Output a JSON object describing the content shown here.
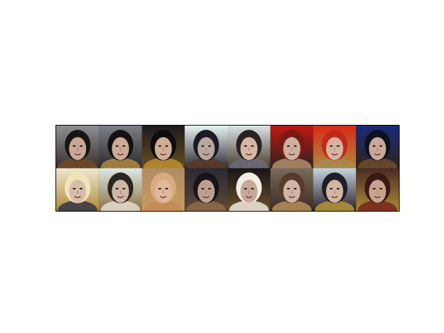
{
  "figure": {
    "grid": {
      "rows": 2,
      "columns": 8,
      "tiles": [
        {
          "bg_top": "#8d8f95",
          "bg_bottom": "#3a2f2a",
          "hair": "#1a1512",
          "skin": "#c8a894",
          "accent": "#6b4a2a"
        },
        {
          "bg_top": "#7b7f86",
          "bg_bottom": "#2c2a2a",
          "hair": "#141014",
          "skin": "#c9ab98",
          "accent": "#a88540"
        },
        {
          "bg_top": "#1c1a1c",
          "bg_bottom": "#6a4d22",
          "hair": "#0e0c0e",
          "skin": "#cfae98",
          "accent": "#b88a30"
        },
        {
          "bg_top": "#e8f4f6",
          "bg_bottom": "#2a2a30",
          "hair": "#1a1c22",
          "skin": "#b8a6a0",
          "accent": "#5a3a2a"
        },
        {
          "bg_top": "#d8e4e6",
          "bg_bottom": "#4a3a2a",
          "hair": "#2a2222",
          "skin": "#d4b8a4",
          "accent": "#6a6a78"
        },
        {
          "bg_top": "#c01810",
          "bg_bottom": "#2a2220",
          "hair": "#7a1a14",
          "skin": "#cfb0a0",
          "accent": "#aa8a6a"
        },
        {
          "bg_top": "#d82a18",
          "bg_bottom": "#b08a40",
          "hair": "#c02a1a",
          "skin": "#d4b4a0",
          "accent": "#a88a50"
        },
        {
          "bg_top": "#1a2a7a",
          "bg_bottom": "#302018",
          "hair": "#0c1020",
          "skin": "#c8a896",
          "accent": "#6a4a2a"
        },
        {
          "bg_top": "#eee8d0",
          "bg_bottom": "#b08a3a",
          "hair": "#f0e4b8",
          "skin": "#d8bcaa",
          "accent": "#3a3a48"
        },
        {
          "bg_top": "#dfe8e8",
          "bg_bottom": "#8a7040",
          "hair": "#2a2620",
          "skin": "#d0b6a4",
          "accent": "#e0d8c8"
        },
        {
          "bg_top": "#b08c64",
          "bg_bottom": "#c89a60",
          "hair": "#d8aa80",
          "skin": "#e0b89a",
          "accent": "#c48a58"
        },
        {
          "bg_top": "#2a2834",
          "bg_bottom": "#5a4a38",
          "hair": "#16141a",
          "skin": "#bfa090",
          "accent": "#8a6a48"
        },
        {
          "bg_top": "#181414",
          "bg_bottom": "#6a5030",
          "hair": "#f2eee6",
          "skin": "#c8a898",
          "accent": "#e8e0d0"
        },
        {
          "bg_top": "#7a6a5c",
          "bg_bottom": "#3a2a22",
          "hair": "#5a3a2a",
          "skin": "#d0b4a4",
          "accent": "#b08a5a"
        },
        {
          "bg_top": "#c4d4e0",
          "bg_bottom": "#2a2028",
          "hair": "#1c1e2a",
          "skin": "#d2b6a2",
          "accent": "#b0903a"
        },
        {
          "bg_top": "#4a2a22",
          "bg_bottom": "#b08a38",
          "hair": "#3a1a16",
          "skin": "#c8a48e",
          "accent": "#7a2a1c"
        }
      ]
    }
  }
}
